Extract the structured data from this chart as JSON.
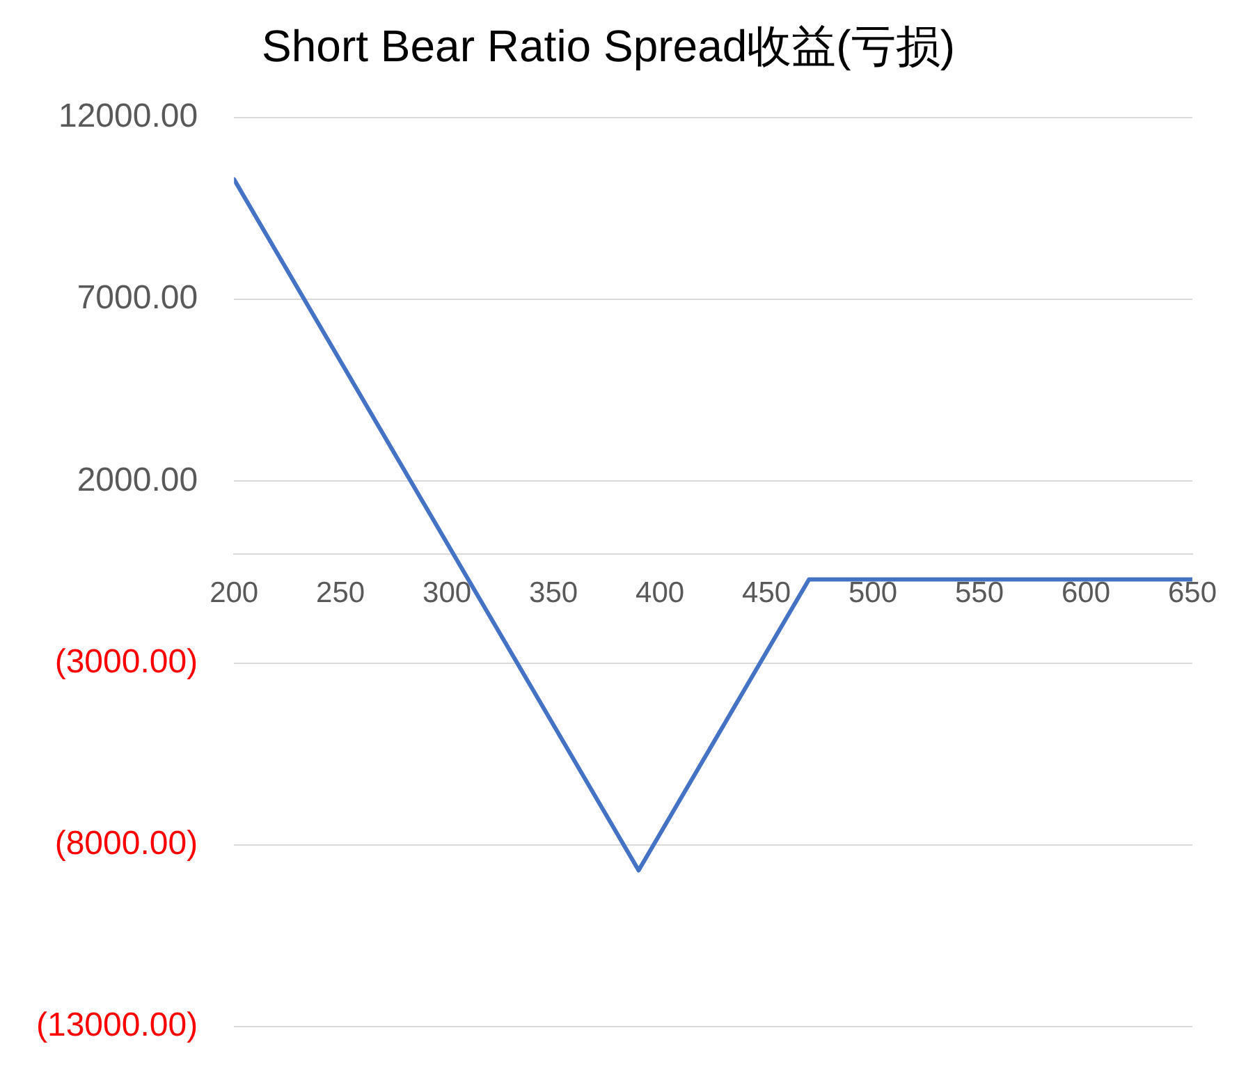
{
  "chart_data": {
    "type": "line",
    "title": "Short Bear Ratio Spread收益(亏损)",
    "x": [
      200,
      210,
      220,
      230,
      240,
      250,
      260,
      270,
      280,
      290,
      300,
      310,
      320,
      330,
      340,
      350,
      360,
      370,
      380,
      390,
      400,
      410,
      420,
      430,
      440,
      450,
      460,
      470,
      480,
      490,
      500,
      510,
      520,
      530,
      540,
      550,
      560,
      570,
      580,
      590,
      600,
      610,
      620,
      630,
      640,
      650
    ],
    "series": [
      {
        "color": "#4472c4",
        "values": [
          10300,
          9300,
          8300,
          7300,
          6300,
          5300,
          4300,
          3300,
          2300,
          1300,
          300,
          -700,
          -1700,
          -2700,
          -3700,
          -4700,
          -5700,
          -6700,
          -7700,
          -8700,
          -7700,
          -6700,
          -5700,
          -4700,
          -3700,
          -2700,
          -1700,
          -700,
          -700,
          -700,
          -700,
          -700,
          -700,
          -700,
          -700,
          -700,
          -700,
          -700,
          -700,
          -700,
          -700,
          -700,
          -700,
          -700,
          -700,
          -700
        ]
      }
    ],
    "xlim": [
      200,
      650
    ],
    "xticks": [
      200,
      250,
      300,
      350,
      400,
      450,
      500,
      550,
      600,
      650
    ],
    "ylim": [
      -13000,
      12000
    ],
    "yticks": [
      {
        "value": -13000,
        "label": "(13000.00)"
      },
      {
        "value": -8000,
        "label": "(8000.00)"
      },
      {
        "value": -3000,
        "label": "(3000.00)"
      },
      {
        "value": 2000,
        "label": "2000.00"
      },
      {
        "value": 7000,
        "label": "7000.00"
      },
      {
        "value": 12000,
        "label": "12000.00"
      }
    ],
    "grid": "y",
    "marker": "none",
    "line_style": "solid",
    "legend": false
  }
}
